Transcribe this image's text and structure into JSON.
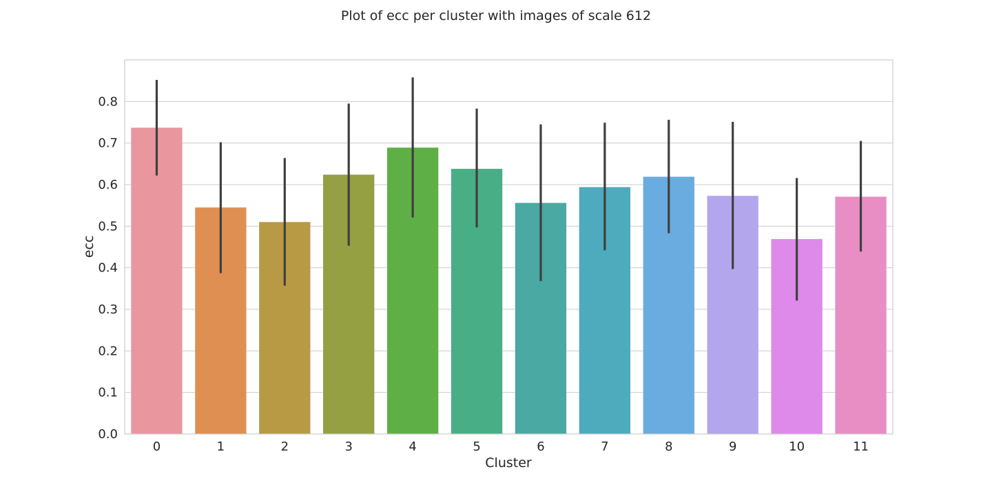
{
  "chart_data": {
    "type": "bar",
    "title": "Plot of ecc per cluster with images of scale 612",
    "xlabel": "Cluster",
    "ylabel": "ecc",
    "categories": [
      "0",
      "1",
      "2",
      "3",
      "4",
      "5",
      "6",
      "7",
      "8",
      "9",
      "10",
      "11"
    ],
    "values": [
      0.737,
      0.545,
      0.51,
      0.624,
      0.689,
      0.638,
      0.556,
      0.594,
      0.619,
      0.573,
      0.469,
      0.571
    ],
    "error_low": [
      0.622,
      0.387,
      0.357,
      0.453,
      0.521,
      0.497,
      0.368,
      0.442,
      0.483,
      0.397,
      0.321,
      0.439
    ],
    "error_high": [
      0.852,
      0.702,
      0.664,
      0.795,
      0.858,
      0.783,
      0.745,
      0.749,
      0.756,
      0.751,
      0.616,
      0.705
    ],
    "colors": [
      "#e9969f",
      "#e08f52",
      "#b89a45",
      "#94a042",
      "#5eaf46",
      "#48ae86",
      "#4aa9a2",
      "#4eaabd",
      "#6aacdf",
      "#b4a6ec",
      "#dd8aea",
      "#e88ec4"
    ],
    "ylim": [
      0,
      0.9
    ],
    "yticks": [
      "0.0",
      "0.1",
      "0.2",
      "0.3",
      "0.4",
      "0.5",
      "0.6",
      "0.7",
      "0.8"
    ],
    "grid": true,
    "style": "seaborn-whitegrid"
  }
}
